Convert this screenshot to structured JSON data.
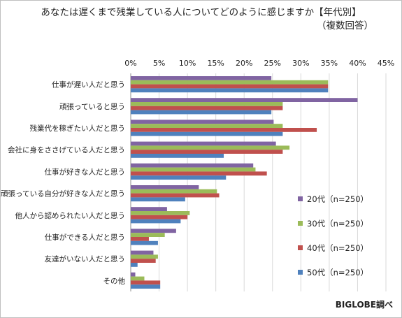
{
  "title": "あなたは遅くまで残業している人についてどのように感じますか【年代別】",
  "subtitle": "（複数回答）",
  "source": "BIGLOBE調べ",
  "chart_data": {
    "type": "bar",
    "orientation": "horizontal",
    "title": "あなたは遅くまで残業している人についてどのように感じますか【年代別】",
    "subtitle": "（複数回答）",
    "xlim": [
      0,
      45
    ],
    "x_ticks": [
      "0%",
      "5%",
      "10%",
      "15%",
      "20%",
      "25%",
      "30%",
      "35%",
      "40%",
      "45%"
    ],
    "x_tick_values": [
      0,
      5,
      10,
      15,
      20,
      25,
      30,
      35,
      40,
      45
    ],
    "x_axis_position": "top",
    "grid": "vertical",
    "legend_position": "right",
    "categories": [
      "仕事が遅い人だと思う",
      "頑張っていると思う",
      "残業代を稼ぎたい人だと思う",
      "会社に身をささげている人だと思う",
      "仕事が好きな人だと思う",
      "頑張っている自分が好きな人だと思う",
      "他人から認められたい人だと思う",
      "仕事ができる人だと思う",
      "友達がいない人だと思う",
      "その他"
    ],
    "series": [
      {
        "name": "20代（n=250）",
        "color": "#8064a2",
        "values": [
          24.8,
          40.0,
          25.2,
          25.6,
          21.6,
          12.0,
          6.4,
          8.0,
          4.0,
          0.8
        ]
      },
      {
        "name": "30代（n=250）",
        "color": "#9bbb59",
        "values": [
          34.8,
          26.8,
          26.8,
          28.0,
          22.0,
          15.2,
          10.4,
          6.0,
          4.8,
          2.4
        ]
      },
      {
        "name": "40代（n=250）",
        "color": "#c0504d",
        "values": [
          34.8,
          26.8,
          32.8,
          26.8,
          24.0,
          15.6,
          10.0,
          3.2,
          4.4,
          5.2
        ]
      },
      {
        "name": "50代（n=250）",
        "color": "#4f81bd",
        "values": [
          34.8,
          24.8,
          26.8,
          16.4,
          16.8,
          9.6,
          8.8,
          4.8,
          1.2,
          5.2
        ]
      }
    ]
  }
}
